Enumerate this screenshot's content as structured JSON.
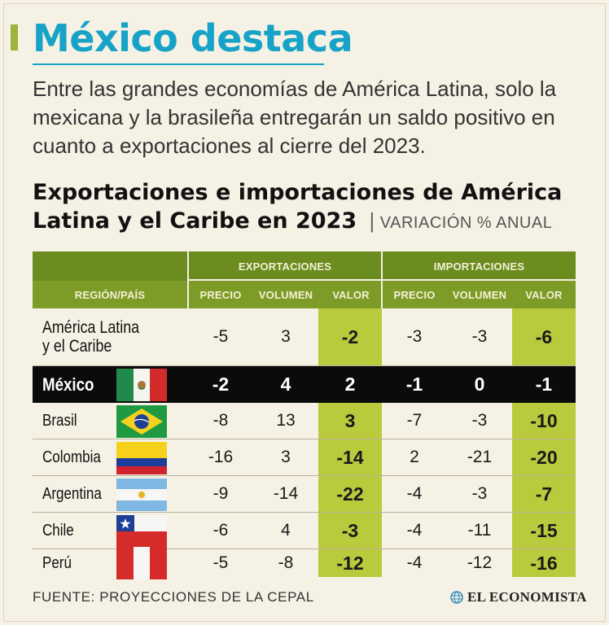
{
  "title": "México destaca",
  "intro": "Entre las grandes economías de América Latina, solo la mexicana y la brasileña entregarán un saldo positivo en cuanto a exportaciones al cierre del 2023.",
  "chart_title": "Exportaciones e importaciones de América Latina y el Caribe en 2023",
  "chart_subtitle": "VARIACIÓN % ANUAL",
  "source": "FUENTE: PROYECCIONES DE LA CEPAL",
  "logo_text": "EL ECONOMISTA",
  "colors": {
    "title": "#17a3c7",
    "header": "#6b8c1e",
    "highlight": "#b9cb3c",
    "mexico_row": "#0b0b0b"
  },
  "headers": {
    "group_exports": "EXPORTACIONES",
    "group_imports": "IMPORTACIONES",
    "region": "REGIÓN/PAÍS",
    "precio": "PRECIO",
    "volumen": "VOLUMEN",
    "valor": "VALOR"
  },
  "chart_data": {
    "type": "table",
    "title": "Exportaciones e importaciones de América Latina y el Caribe en 2023",
    "unit": "VARIACIÓN % ANUAL",
    "columns": [
      "Exportaciones Precio",
      "Exportaciones Volumen",
      "Exportaciones Valor",
      "Importaciones Precio",
      "Importaciones Volumen",
      "Importaciones Valor"
    ],
    "rows": [
      {
        "name": "América Latina y el Caribe",
        "flag": "",
        "values": [
          "-5",
          "3",
          "-2",
          "-3",
          "-3",
          "-6"
        ]
      },
      {
        "name": "México",
        "flag": "mexico-flag",
        "values": [
          "-2",
          "4",
          "2",
          "-1",
          "0",
          "-1"
        ]
      },
      {
        "name": "Brasil",
        "flag": "brazil-flag",
        "values": [
          "-8",
          "13",
          "3",
          "-7",
          "-3",
          "-10"
        ]
      },
      {
        "name": "Colombia",
        "flag": "colombia-flag",
        "values": [
          "-16",
          "3",
          "-14",
          "2",
          "-21",
          "-20"
        ]
      },
      {
        "name": "Argentina",
        "flag": "argentina-flag",
        "values": [
          "-9",
          "-14",
          "-22",
          "-4",
          "-3",
          "-7"
        ]
      },
      {
        "name": "Chile",
        "flag": "chile-flag",
        "values": [
          "-6",
          "4",
          "-3",
          "-4",
          "-11",
          "-15"
        ]
      },
      {
        "name": "Perú",
        "flag": "peru-flag",
        "values": [
          "-5",
          "-8",
          "-12",
          "-4",
          "-12",
          "-16"
        ]
      }
    ]
  }
}
